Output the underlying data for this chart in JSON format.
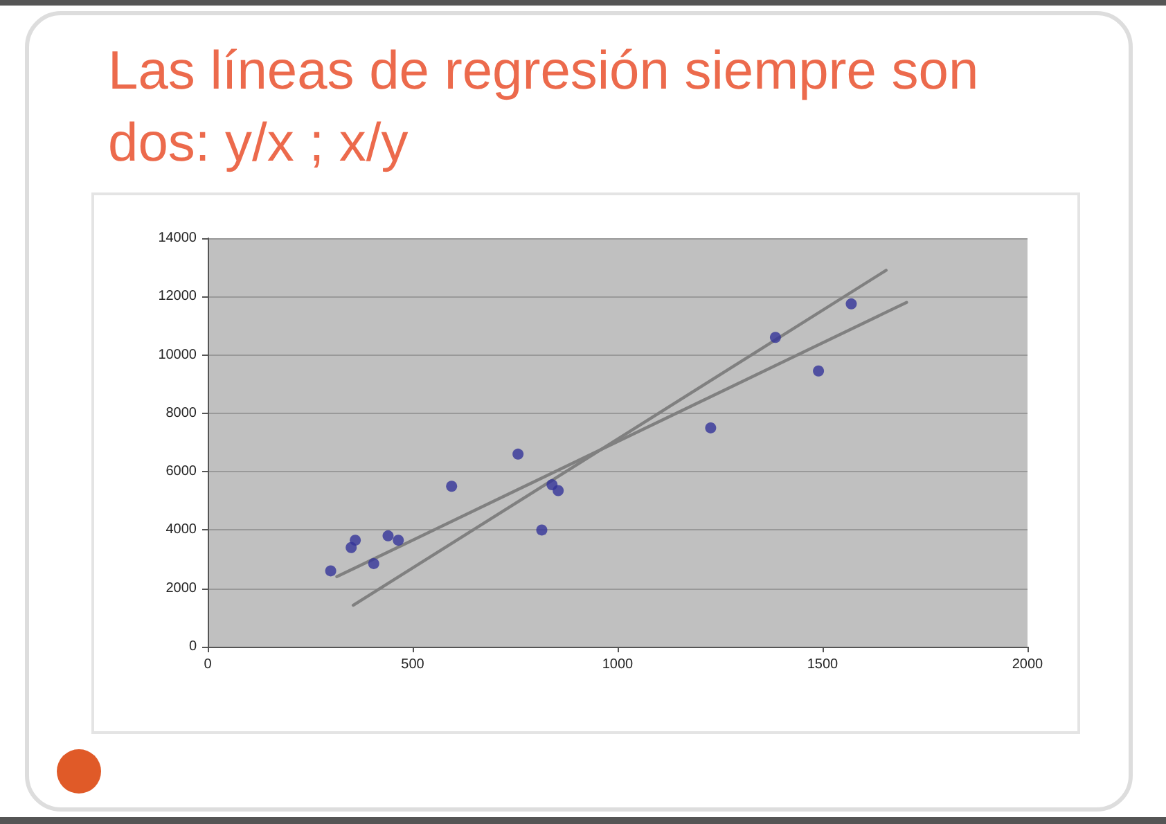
{
  "chart_data": {
    "type": "scatter",
    "title": "Las líneas de regresión siempre son dos: y/x ; x/y",
    "series": [
      {
        "color": "#333399",
        "x": [
          300,
          350,
          360,
          405,
          440,
          465,
          595,
          757,
          815,
          840,
          855,
          1227,
          1385,
          1490,
          1570
        ],
        "values": [
          2600,
          3400,
          3650,
          2850,
          3800,
          3650,
          5500,
          6600,
          4000,
          5550,
          5350,
          7500,
          10600,
          9450,
          11750
        ]
      },
      {
        "type": "line",
        "marker": "none",
        "color": "#808080",
        "x": [
          355,
          1655
        ],
        "values": [
          1420,
          12900
        ]
      },
      {
        "type": "line",
        "marker": "none",
        "color": "#808080",
        "x": [
          315,
          1705
        ],
        "values": [
          2400,
          11800
        ]
      }
    ],
    "xlim": [
      0,
      2000
    ],
    "xticks": [
      0,
      500,
      1000,
      1500,
      2000
    ],
    "ylim": [
      0,
      14000
    ],
    "yticks": [
      0,
      2000,
      4000,
      6000,
      8000,
      10000,
      12000,
      14000
    ],
    "grid": "y",
    "marker": "circle"
  }
}
